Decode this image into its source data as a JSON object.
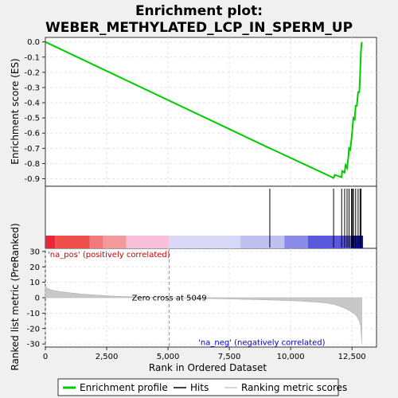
{
  "chart_data": [
    {
      "type": "line",
      "title": "Enrichment plot: WEBER_METHYLATED_LCP_IN_SPERM_UP",
      "ylabel": "Enrichment score (ES)",
      "xlim": [
        0,
        13500
      ],
      "ylim": [
        -0.95,
        0.03
      ],
      "yticks": [
        0.0,
        -0.1,
        -0.2,
        -0.3,
        -0.4,
        -0.5,
        -0.6,
        -0.7,
        -0.8,
        -0.9
      ],
      "ytick_labels": [
        "0.0",
        "-0.1",
        "-0.2",
        "-0.3",
        "-0.4",
        "-0.5",
        "-0.6",
        "-0.7",
        "-0.8",
        "-0.9"
      ],
      "grid": true,
      "series": [
        {
          "name": "Enrichment profile",
          "color": "#00cc00",
          "x": [
            0,
            9150,
            9200,
            11750,
            11800,
            12080,
            12100,
            12200,
            12240,
            12300,
            12350,
            12380,
            12430,
            12480,
            12520,
            12560,
            12610,
            12650,
            12700,
            12750,
            12800,
            12830,
            12850,
            12870,
            12900
          ],
          "y": [
            0.0,
            -0.7,
            -0.703,
            -0.895,
            -0.875,
            -0.89,
            -0.85,
            -0.86,
            -0.81,
            -0.83,
            -0.76,
            -0.7,
            -0.71,
            -0.64,
            -0.57,
            -0.5,
            -0.51,
            -0.42,
            -0.42,
            -0.33,
            -0.33,
            -0.22,
            -0.12,
            -0.05,
            0.0
          ]
        }
      ]
    },
    {
      "type": "hits",
      "xlim": [
        0,
        13500
      ],
      "hits": [
        9150,
        11750,
        12080,
        12200,
        12300,
        12380,
        12480,
        12520,
        12560,
        12650,
        12750,
        12830,
        12870
      ],
      "color_bar": {
        "stops": [
          {
            "x": 0,
            "color": "#e8283a"
          },
          {
            "x": 400,
            "color": "#f0504c"
          },
          {
            "x": 1800,
            "color": "#f27a7a"
          },
          {
            "x": 2350,
            "color": "#f59a9a"
          },
          {
            "x": 3300,
            "color": "#f7c0d8"
          },
          {
            "x": 5050,
            "color": "#d9d9f7"
          },
          {
            "x": 7950,
            "color": "#c0c0f2"
          },
          {
            "x": 9750,
            "color": "#8a8aea"
          },
          {
            "x": 10700,
            "color": "#5858dc"
          },
          {
            "x": 12450,
            "color": "#1010b0"
          },
          {
            "x": 12950,
            "color": "#1010b0"
          }
        ]
      }
    },
    {
      "type": "area",
      "xlabel": "Rank in Ordered Dataset",
      "ylabel": "Ranked list metric (PreRanked)",
      "xlim": [
        0,
        13500
      ],
      "ylim": [
        -32,
        32
      ],
      "xticks": [
        0,
        2500,
        5000,
        7500,
        10000,
        12500
      ],
      "xtick_labels": [
        "0",
        "2,500",
        "5,000",
        "7,500",
        "10,000",
        "12,500"
      ],
      "yticks": [
        30,
        20,
        10,
        0,
        -10,
        -20,
        -30
      ],
      "ytick_labels": [
        "30",
        "20",
        "10",
        "0",
        "-10",
        "-20",
        "-30"
      ],
      "grid": true,
      "x": [
        0,
        50,
        150,
        300,
        600,
        1000,
        1500,
        2000,
        2500,
        3000,
        3500,
        4000,
        4500,
        5049,
        6000,
        7000,
        8000,
        9000,
        10000,
        10500,
        11000,
        11500,
        11800,
        12000,
        12200,
        12400,
        12600,
        12700,
        12800,
        12850,
        12880,
        12900
      ],
      "y": [
        7.5,
        6.5,
        5.5,
        4.8,
        4.0,
        3.2,
        2.4,
        1.8,
        1.3,
        0.9,
        0.6,
        0.35,
        0.15,
        0.0,
        -0.3,
        -0.6,
        -1.0,
        -1.4,
        -1.9,
        -2.3,
        -2.8,
        -3.5,
        -4.5,
        -5.5,
        -6.8,
        -8.3,
        -10.5,
        -12.0,
        -15.0,
        -18.0,
        -24.0,
        -29.5
      ],
      "annotations": [
        {
          "text": "'na_pos' (positively correlated)",
          "x": 0,
          "y": 29,
          "color": "#cc0000"
        },
        {
          "text": "Zero cross at 5049",
          "x": 5049,
          "y": 0
        },
        {
          "text": "'na_neg' (negatively correlated)",
          "x": 12900,
          "y": -29,
          "color": "#0000cc"
        }
      ],
      "zero_cross": 5049
    }
  ],
  "legend": {
    "placement": "bottom",
    "items": [
      {
        "label": "Enrichment profile",
        "color": "#00cc00",
        "style": "line"
      },
      {
        "label": "Hits",
        "color": "#000000",
        "style": "line"
      },
      {
        "label": "Ranking metric scores",
        "color": "#c8c8c8",
        "style": "line"
      }
    ]
  }
}
